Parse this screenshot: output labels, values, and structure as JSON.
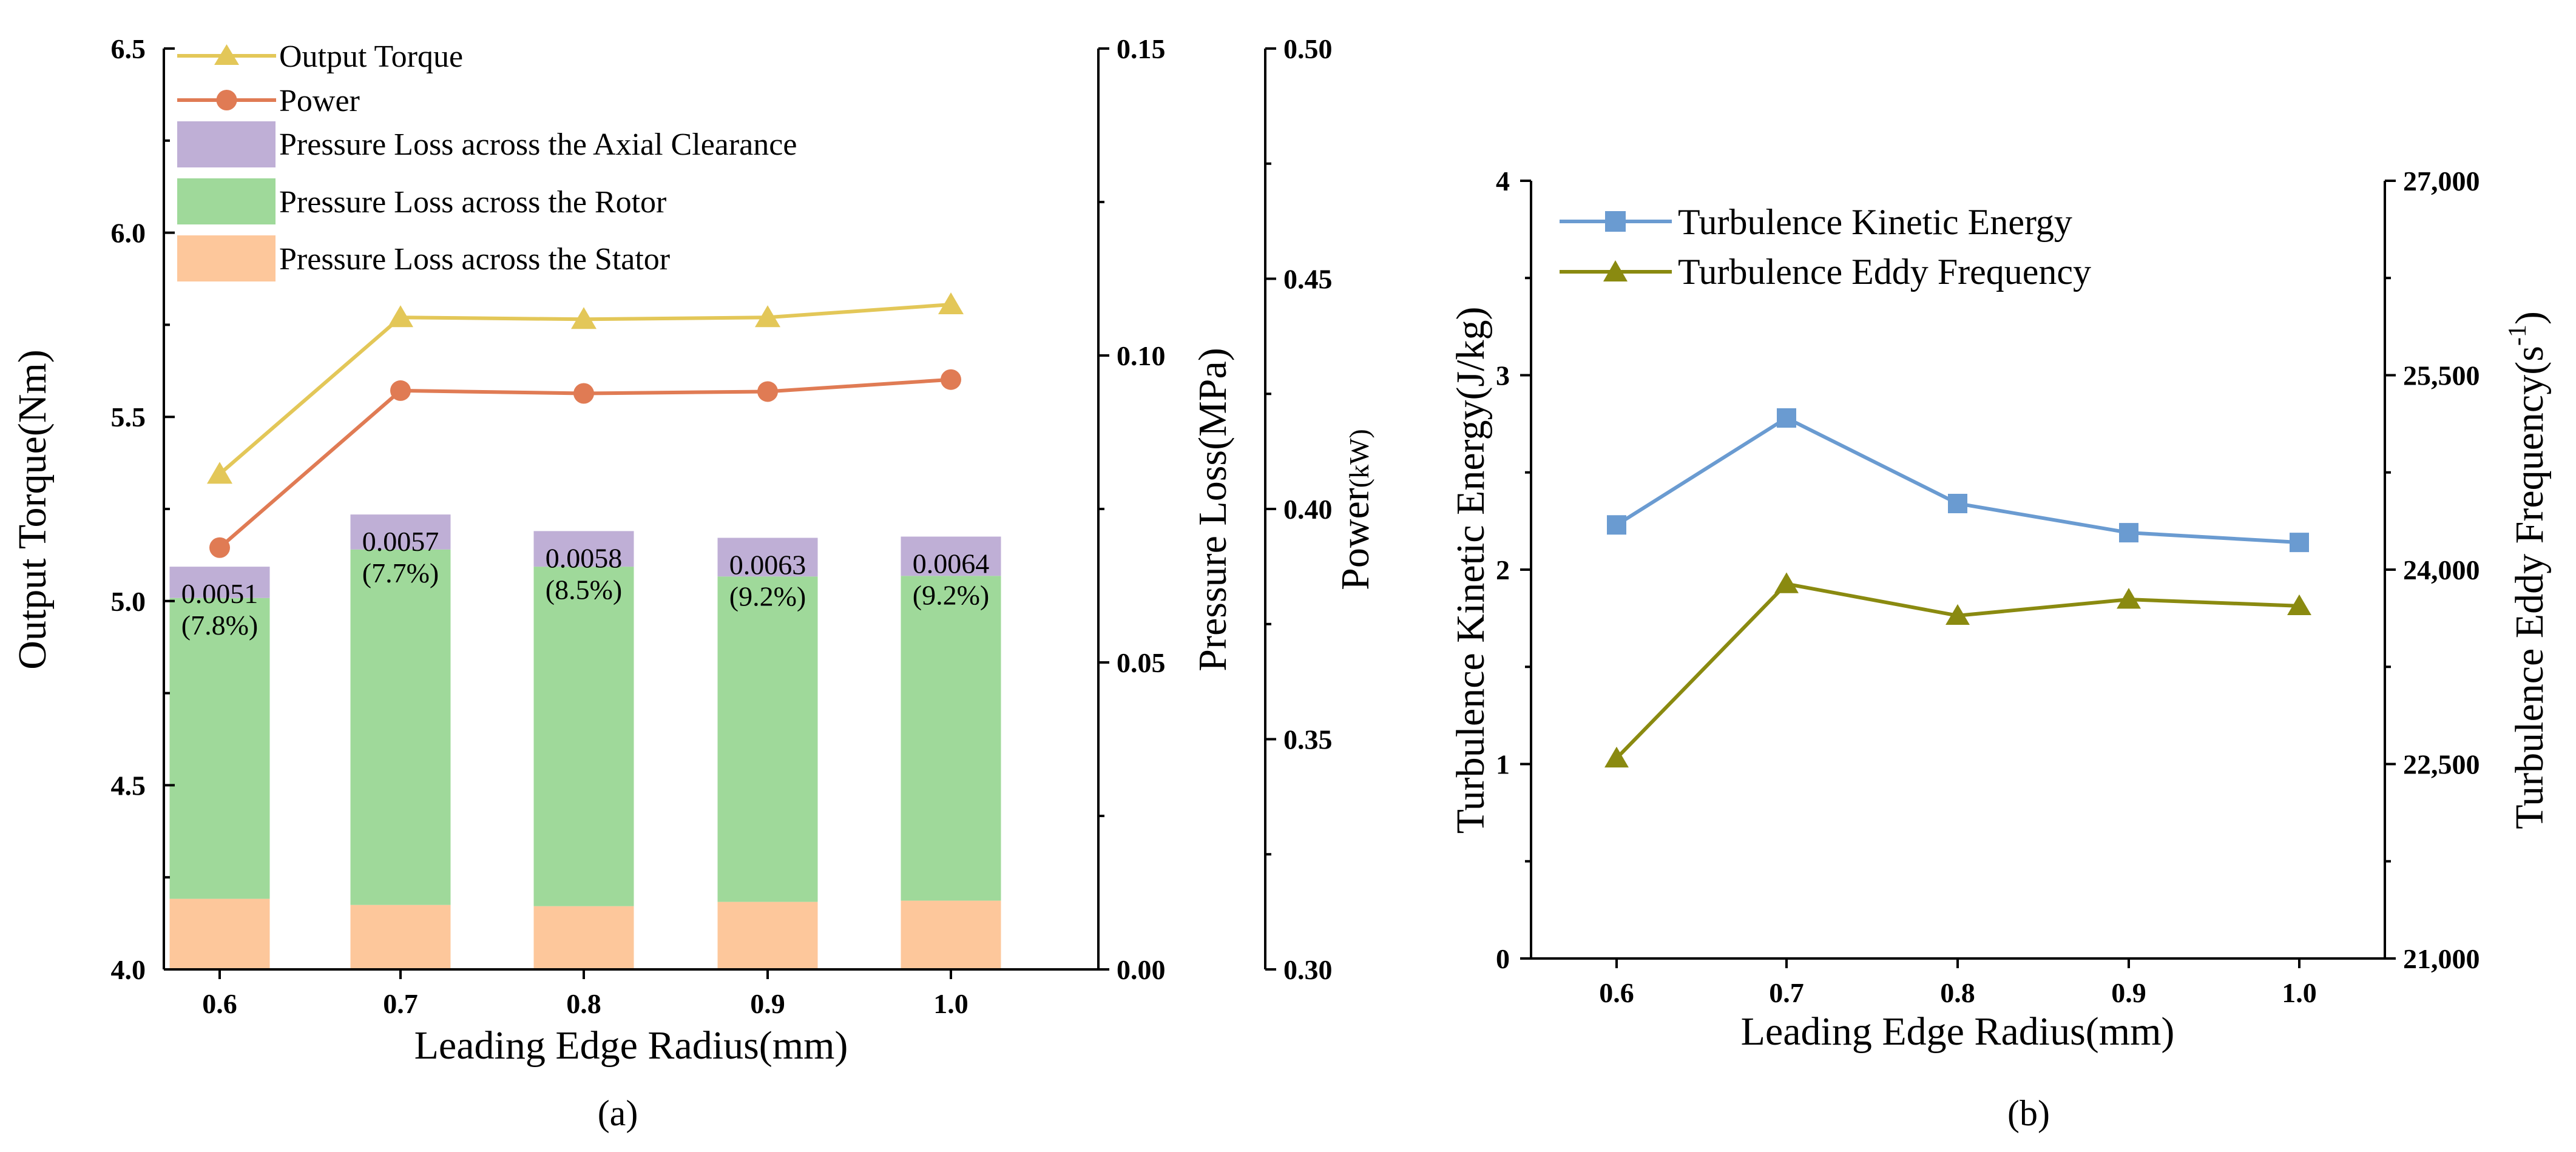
{
  "chart_data": [
    {
      "panel": "(a)",
      "type": "bar+line",
      "xlabel": "Leading Edge Radius(mm)",
      "categories": [
        "0.6",
        "0.7",
        "0.8",
        "0.9",
        "1.0"
      ],
      "left_axis": {
        "title": "Output Torque(Nm)",
        "ylim": [
          4.0,
          6.5
        ],
        "ticks": [
          "4.0",
          "4.5",
          "5.0",
          "5.5",
          "6.0",
          "6.5"
        ]
      },
      "right_axis_1": {
        "title": "Pressure Loss(MPa)",
        "ylim": [
          0.0,
          0.15
        ],
        "ticks": [
          "0.00",
          "0.05",
          "0.10",
          "0.15"
        ]
      },
      "right_axis_2": {
        "title": "Power",
        "title_unit": "(kW)",
        "ylim": [
          0.3,
          0.5
        ],
        "ticks": [
          "0.30",
          "0.35",
          "0.40",
          "0.45",
          "0.50"
        ]
      },
      "stacked_bars": [
        {
          "name": "Pressure Loss across the Stator",
          "color": "#FDC79B",
          "values": [
            0.0115,
            0.0105,
            0.0103,
            0.011,
            0.0112
          ]
        },
        {
          "name": "Pressure Loss across the Rotor",
          "color": "#9FD99A",
          "values": [
            0.049,
            0.0579,
            0.0553,
            0.053,
            0.0529
          ]
        },
        {
          "name": "Pressure Loss across the Axial Clearance",
          "color": "#BFAFD6",
          "values": [
            0.0051,
            0.0057,
            0.0058,
            0.0063,
            0.0064
          ]
        }
      ],
      "bar_labels": [
        {
          "value": "0.0051",
          "percent": "(7.8%)"
        },
        {
          "value": "0.0057",
          "percent": "(7.7%)"
        },
        {
          "value": "0.0058",
          "percent": "(8.5%)"
        },
        {
          "value": "0.0063",
          "percent": "(9.2%)"
        },
        {
          "value": "0.0064",
          "percent": "(9.2%)"
        }
      ],
      "lines": [
        {
          "name": "Output Torque",
          "axis": "left",
          "color": "#E3C758",
          "marker": "triangle",
          "values": [
            5.345,
            5.77,
            5.765,
            5.77,
            5.805
          ]
        },
        {
          "name": "Power",
          "axis": "right_2",
          "color": "#E07B54",
          "marker": "circle",
          "values": [
            0.3916,
            0.4257,
            0.4251,
            0.4255,
            0.4281
          ]
        }
      ],
      "legend_order": [
        "Output Torque",
        "Power",
        "Pressure Loss across the Axial Clearance",
        "Pressure Loss across the Rotor",
        "Pressure Loss across the Stator"
      ],
      "legend": "top-left"
    },
    {
      "panel": "(b)",
      "type": "line",
      "xlabel": "Leading Edge Radius(mm)",
      "categories": [
        "0.6",
        "0.7",
        "0.8",
        "0.9",
        "1.0"
      ],
      "left_axis": {
        "title": "Turbulence Kinetic Energy(J/kg)",
        "ylim": [
          0,
          4
        ],
        "ticks": [
          "0",
          "1",
          "2",
          "3",
          "4"
        ]
      },
      "right_axis": {
        "title": "Turbulence Eddy Frequency(s",
        "title_sup": "-1",
        "title_end": ")",
        "ylim": [
          21000,
          27000
        ],
        "ticks": [
          "21,000",
          "22,500",
          "24,000",
          "25,500",
          "27,000"
        ]
      },
      "lines": [
        {
          "name": "Turbulence Kinetic Energy",
          "axis": "left",
          "color": "#6A9BD1",
          "marker": "square",
          "values": [
            2.23,
            2.78,
            2.34,
            2.19,
            2.14
          ]
        },
        {
          "name": "Turbulence Eddy Frequency",
          "axis": "right",
          "color": "#8A8A10",
          "marker": "triangle",
          "values": [
            22545,
            23890,
            23645,
            23770,
            23720
          ]
        }
      ],
      "legend": "top-left"
    }
  ]
}
